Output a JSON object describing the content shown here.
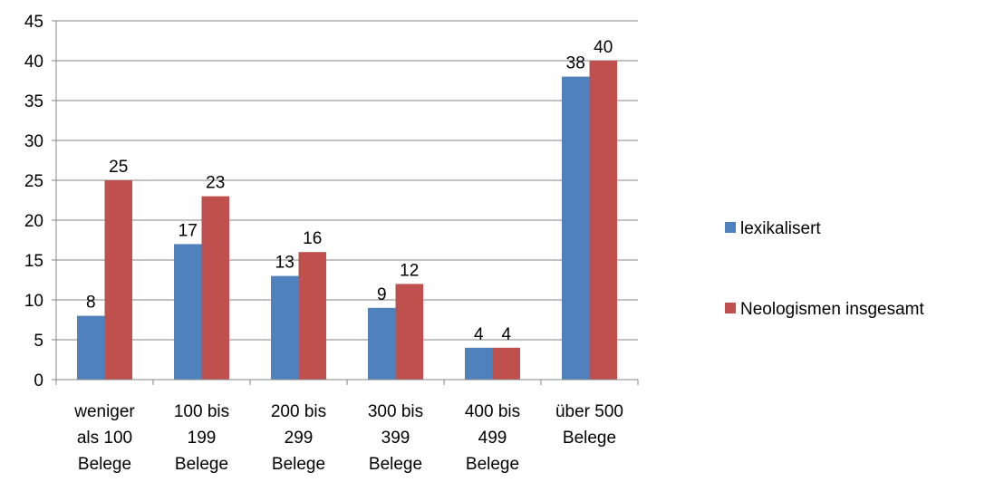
{
  "chart_data": {
    "type": "bar",
    "categories": [
      [
        "weniger",
        "als 100",
        "Belege"
      ],
      [
        "100 bis",
        "199",
        "Belege"
      ],
      [
        "200 bis",
        "299",
        "Belege"
      ],
      [
        "300 bis",
        "399",
        "Belege"
      ],
      [
        "400 bis",
        "499",
        "Belege"
      ],
      [
        "über 500",
        "Belege"
      ]
    ],
    "series": [
      {
        "name": "lexikalisert",
        "values": [
          8,
          17,
          13,
          9,
          4,
          38
        ],
        "color": "#4F81BD"
      },
      {
        "name": "Neologismen insgesamt",
        "values": [
          25,
          23,
          16,
          12,
          4,
          40
        ],
        "color": "#C0504D"
      }
    ],
    "yticks": [
      0,
      5,
      10,
      15,
      20,
      25,
      30,
      35,
      40,
      45
    ],
    "ylim": [
      0,
      45
    ],
    "grid": true,
    "legend": "right",
    "data_labels": true
  }
}
